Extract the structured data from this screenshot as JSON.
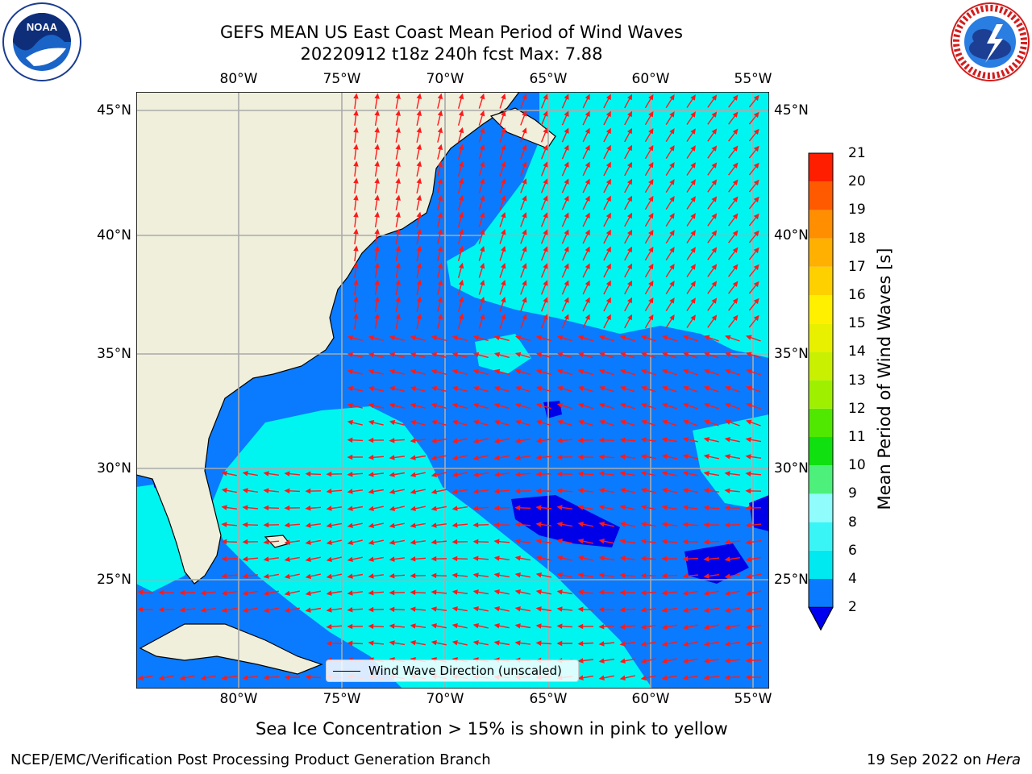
{
  "title": {
    "line1": "GEFS MEAN US East Coast Mean Period of Wind Waves",
    "line2": "20220912 t18z 240h fcst   Max: 7.88"
  },
  "logos": {
    "left": "NOAA",
    "right": "NATIONAL WEATHER SERVICE"
  },
  "axes": {
    "lon_labels": [
      "80°W",
      "75°W",
      "70°W",
      "65°W",
      "60°W",
      "55°W"
    ],
    "lat_labels": [
      "45°N",
      "40°N",
      "35°N",
      "30°N",
      "25°N"
    ]
  },
  "legend": {
    "label": "Wind Wave Direction (unscaled)"
  },
  "colorbar": {
    "title": "Mean Period of Wind Waves [s]",
    "ticks": [
      "2",
      "4",
      "6",
      "8",
      "9",
      "10",
      "11",
      "12",
      "13",
      "14",
      "15",
      "16",
      "17",
      "18",
      "19",
      "20",
      "21"
    ],
    "colors": [
      "#0a7bff",
      "#00e8f0",
      "#3af5f5",
      "#90fcfc",
      "#4cf07a",
      "#10e010",
      "#50e800",
      "#9ef000",
      "#c8f000",
      "#e8f000",
      "#fff000",
      "#ffd000",
      "#ffb000",
      "#ff8e00",
      "#ff5a00",
      "#ff1e00"
    ],
    "under_color": "#0000ee"
  },
  "map_colors": {
    "land": "#efefdc",
    "ocean_2_4": "#0a7bff",
    "ocean_4_6": "#00f5f0",
    "ocean_below_2": "#0000e8",
    "arrow": "#ff1a1a",
    "grid": "#aaaaaa"
  },
  "note": "Sea Ice Concentration > 15% is shown in pink to yellow",
  "footer": {
    "left": "NCEP/EMC/Verification Post Processing Product Generation Branch",
    "right_prefix": "19 Sep 2022 on ",
    "right_host": "Hera"
  }
}
